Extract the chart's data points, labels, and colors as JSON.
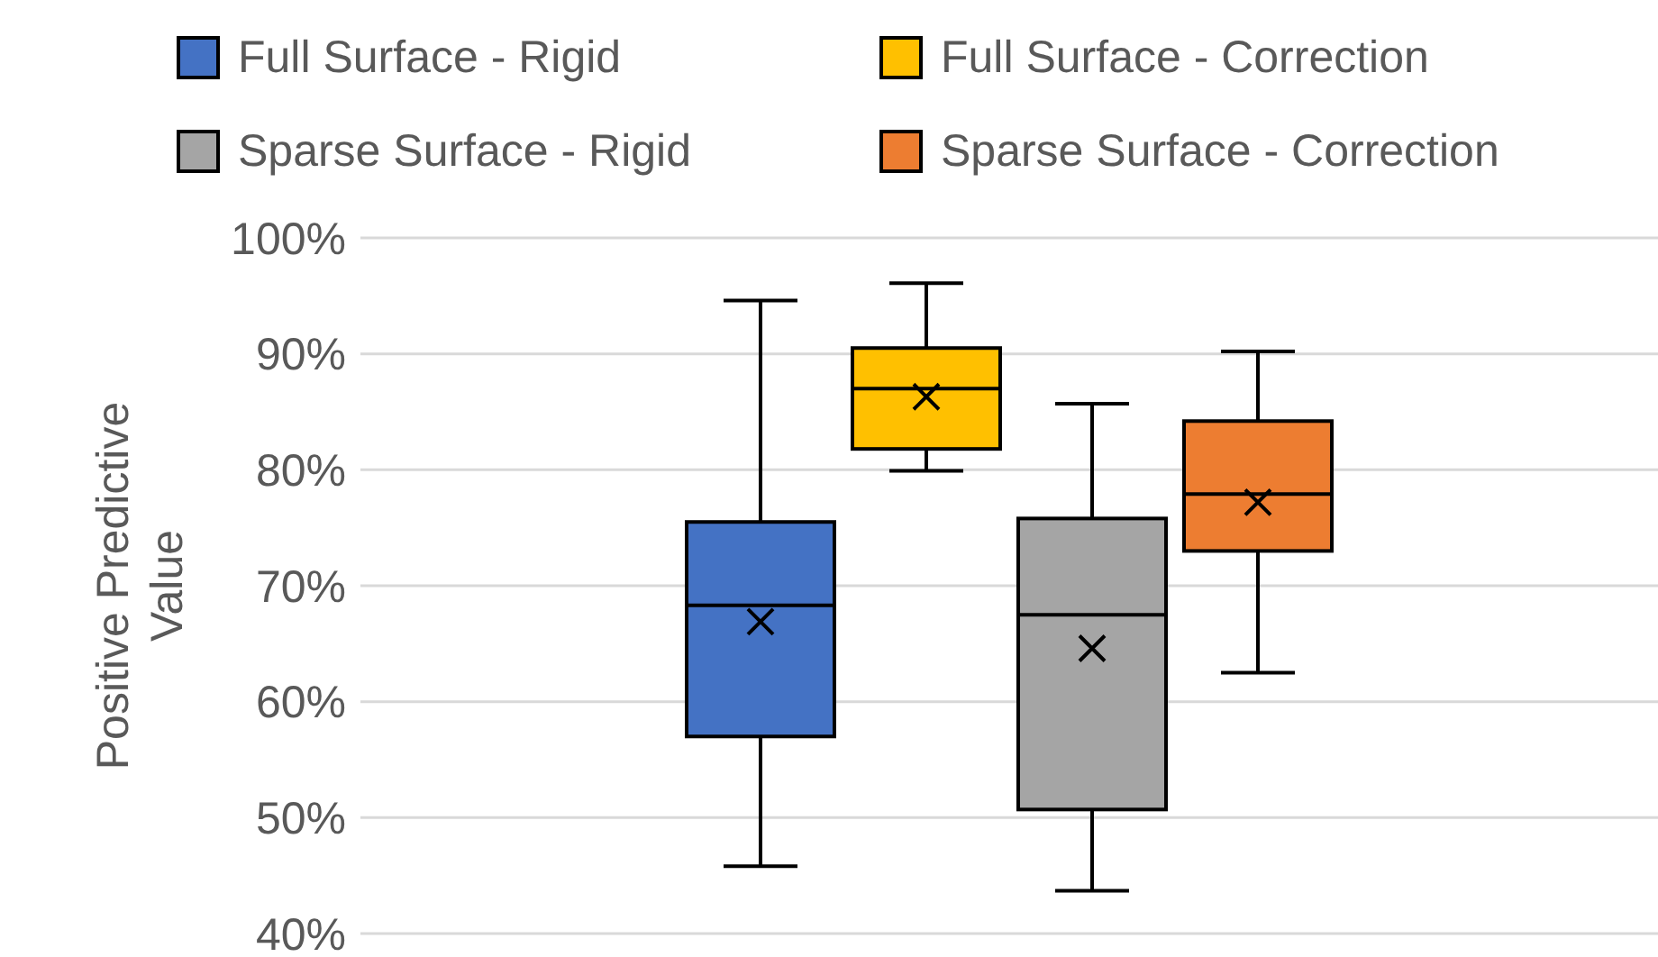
{
  "chart_data": {
    "type": "box",
    "ylabel": "Positive Predictive Value",
    "categories": [
      null
    ],
    "ylim": [
      40,
      100
    ],
    "yticks": [
      {
        "value": 40,
        "label": "40%"
      },
      {
        "value": 50,
        "label": "50%"
      },
      {
        "value": 60,
        "label": "60%"
      },
      {
        "value": 70,
        "label": "70%"
      },
      {
        "value": 80,
        "label": "80%"
      },
      {
        "value": 90,
        "label": "90%"
      },
      {
        "value": 100,
        "label": "100%"
      }
    ],
    "grid": "y",
    "legend": "top",
    "marker": "cross",
    "series": [
      {
        "name": "Full Surface - Rigid",
        "color": "#4472c4",
        "boxes": [
          {
            "low": 45.8,
            "q1": 57,
            "median": 68.3,
            "q3": 75.5,
            "high": 94.6,
            "mean": 66.9
          }
        ]
      },
      {
        "name": "Full Surface - Correction",
        "color": "#ffc000",
        "boxes": [
          {
            "low": 79.9,
            "q1": 81.8,
            "median": 87,
            "q3": 90.5,
            "high": 96.1,
            "mean": 86.3
          }
        ]
      },
      {
        "name": "Sparse Surface - Rigid",
        "color": "#a5a5a5",
        "boxes": [
          {
            "low": 43.7,
            "q1": 50.7,
            "median": 67.5,
            "q3": 75.8,
            "high": 85.7,
            "mean": 64.6
          }
        ]
      },
      {
        "name": "Sparse Surface - Correction",
        "color": "#ed7d31",
        "boxes": [
          {
            "low": 62.5,
            "q1": 73,
            "median": 77.9,
            "q3": 84.2,
            "high": 90.2,
            "mean": 77.2
          }
        ]
      }
    ]
  }
}
